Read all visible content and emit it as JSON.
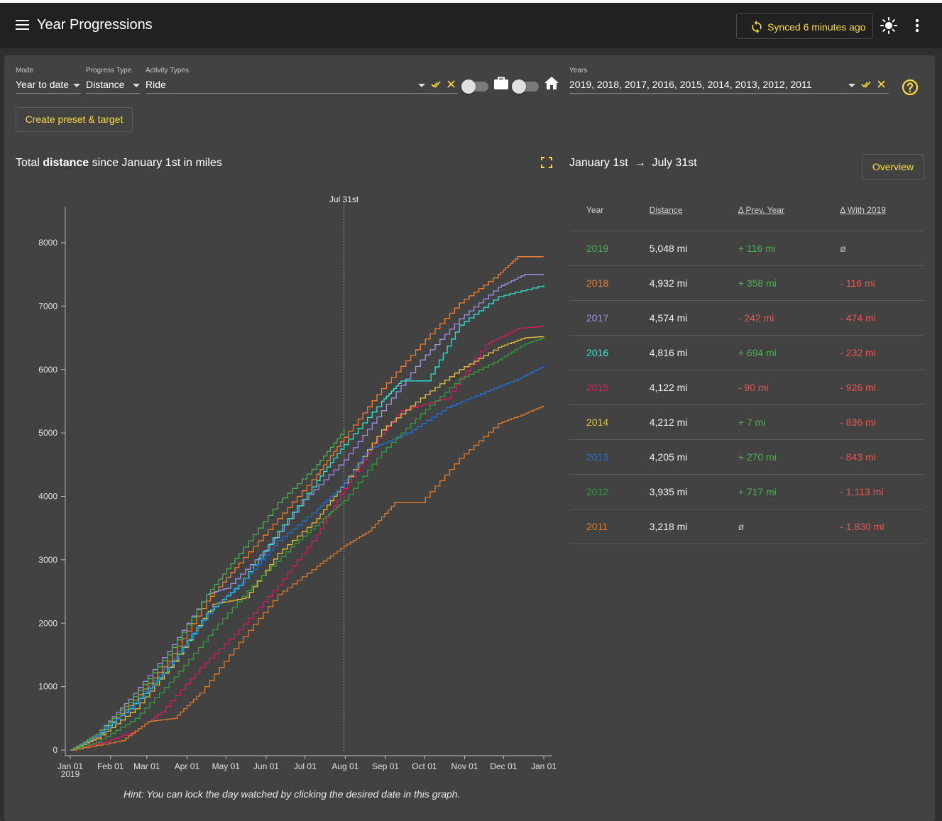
{
  "app": {
    "title": "Year Progressions",
    "sync_label": "Synced 6 minutes ago"
  },
  "filters": {
    "mode": {
      "label": "Mode",
      "value": "Year to date"
    },
    "progress_type": {
      "label": "Progress Type",
      "value": "Distance"
    },
    "activity_types": {
      "label": "Activity Types",
      "value": "Ride"
    },
    "years": {
      "label": "Years",
      "value": "2019, 2018, 2017, 2016, 2015, 2014, 2013, 2012, 2011"
    },
    "commute_toggle": false,
    "indoor_toggle": false
  },
  "buttons": {
    "create_preset": "Create preset & target",
    "overview": "Overview"
  },
  "chart": {
    "title_prefix": "Total",
    "title_bold": "distance",
    "title_suffix": "since January 1st in miles",
    "hint": "Hint: You can lock the day watched by clicking the desired date in this graph."
  },
  "table": {
    "range_from": "January 1st",
    "range_to": "July 31st",
    "headers": {
      "year": "Year",
      "distance": "Distance",
      "prev": "Δ Prev. Year",
      "with": "Δ With 2019"
    },
    "rows": [
      {
        "year": "2019",
        "color": "#4caf50",
        "distance": "5,048 mi",
        "prev": "+ 116 mi",
        "prev_sign": "pos",
        "with": "ø",
        "with_sign": "nil"
      },
      {
        "year": "2018",
        "color": "#f57c2b",
        "distance": "4,932 mi",
        "prev": "+ 358 mi",
        "prev_sign": "pos",
        "with": "- 116 mi",
        "with_sign": "neg"
      },
      {
        "year": "2017",
        "color": "#9f8fe8",
        "distance": "4,574 mi",
        "prev": "- 242 mi",
        "prev_sign": "neg",
        "with": "- 474 mi",
        "with_sign": "neg"
      },
      {
        "year": "2016",
        "color": "#2ee6d6",
        "distance": "4,816 mi",
        "prev": "+ 694 mi",
        "prev_sign": "pos",
        "with": "- 232 mi",
        "with_sign": "neg"
      },
      {
        "year": "2015",
        "color": "#d81b60",
        "distance": "4,122 mi",
        "prev": "- 90 mi",
        "prev_sign": "neg",
        "with": "- 926 mi",
        "with_sign": "neg"
      },
      {
        "year": "2014",
        "color": "#e5c13a",
        "distance": "4,212 mi",
        "prev": "+ 7 mi",
        "prev_sign": "pos",
        "with": "- 836 mi",
        "with_sign": "neg"
      },
      {
        "year": "2013",
        "color": "#1e6fd9",
        "distance": "4,205 mi",
        "prev": "+ 270 mi",
        "prev_sign": "pos",
        "with": "- 843 mi",
        "with_sign": "neg"
      },
      {
        "year": "2012",
        "color": "#2e9d3a",
        "distance": "3,935 mi",
        "prev": "+ 717 mi",
        "prev_sign": "pos",
        "with": "- 1,113 mi",
        "with_sign": "neg"
      },
      {
        "year": "2011",
        "color": "#e07a26",
        "distance": "3,218 mi",
        "prev": "ø",
        "prev_sign": "nil",
        "with": "- 1,830 mi",
        "with_sign": "neg"
      }
    ]
  },
  "chart_data": {
    "type": "line",
    "title": "Total distance since January 1st in miles",
    "xlabel": "",
    "ylabel": "",
    "x_ticks": [
      "Jan 01",
      "Feb 01",
      "Mar 01",
      "Apr 01",
      "May 01",
      "Jun 01",
      "Jul 01",
      "Aug 01",
      "Sep 01",
      "Oct 01",
      "Nov 01",
      "Dec 01",
      "Jan 01"
    ],
    "x_tick_sub": "2019",
    "x_range_days": [
      0,
      365
    ],
    "ylim": [
      0,
      8000
    ],
    "y_ticks": [
      0,
      1000,
      2000,
      3000,
      4000,
      5000,
      6000,
      7000,
      8000
    ],
    "marker": {
      "label": "Jul 31st",
      "day": 211
    },
    "grid": false,
    "x_unit": "day of year",
    "series": [
      {
        "name": "2018",
        "color": "#f57c2b",
        "points": [
          [
            0,
            0
          ],
          [
            20,
            200
          ],
          [
            45,
            700
          ],
          [
            75,
            1400
          ],
          [
            105,
            2350
          ],
          [
            130,
            2950
          ],
          [
            160,
            3650
          ],
          [
            190,
            4350
          ],
          [
            211,
            4932
          ],
          [
            240,
            5700
          ],
          [
            270,
            6400
          ],
          [
            300,
            7050
          ],
          [
            330,
            7500
          ],
          [
            345,
            7780
          ],
          [
            365,
            7780
          ]
        ]
      },
      {
        "name": "2017",
        "color": "#9f8fe8",
        "points": [
          [
            0,
            0
          ],
          [
            20,
            250
          ],
          [
            45,
            800
          ],
          [
            75,
            1550
          ],
          [
            105,
            2450
          ],
          [
            120,
            2550
          ],
          [
            150,
            3150
          ],
          [
            180,
            3950
          ],
          [
            211,
            4574
          ],
          [
            240,
            5350
          ],
          [
            270,
            6150
          ],
          [
            300,
            6800
          ],
          [
            330,
            7300
          ],
          [
            350,
            7500
          ],
          [
            365,
            7500
          ]
        ]
      },
      {
        "name": "2016",
        "color": "#2ee6d6",
        "points": [
          [
            0,
            0
          ],
          [
            20,
            220
          ],
          [
            45,
            650
          ],
          [
            75,
            1300
          ],
          [
            105,
            2150
          ],
          [
            130,
            2600
          ],
          [
            160,
            3450
          ],
          [
            190,
            4250
          ],
          [
            211,
            4816
          ],
          [
            240,
            5500
          ],
          [
            255,
            5820
          ],
          [
            275,
            5820
          ],
          [
            300,
            6700
          ],
          [
            330,
            7150
          ],
          [
            365,
            7330
          ]
        ]
      },
      {
        "name": "2015",
        "color": "#d81b60",
        "points": [
          [
            0,
            0
          ],
          [
            25,
            120
          ],
          [
            50,
            300
          ],
          [
            70,
            600
          ],
          [
            100,
            1300
          ],
          [
            130,
            1900
          ],
          [
            160,
            2600
          ],
          [
            190,
            3400
          ],
          [
            211,
            4122
          ],
          [
            235,
            4850
          ],
          [
            255,
            5350
          ],
          [
            290,
            5550
          ],
          [
            320,
            6400
          ],
          [
            345,
            6650
          ],
          [
            365,
            6680
          ]
        ]
      },
      {
        "name": "2014",
        "color": "#e5c13a",
        "points": [
          [
            0,
            0
          ],
          [
            20,
            180
          ],
          [
            50,
            650
          ],
          [
            80,
            1400
          ],
          [
            110,
            2300
          ],
          [
            135,
            2400
          ],
          [
            160,
            3100
          ],
          [
            190,
            3650
          ],
          [
            211,
            4212
          ],
          [
            240,
            5050
          ],
          [
            270,
            5550
          ],
          [
            300,
            6000
          ],
          [
            330,
            6350
          ],
          [
            350,
            6500
          ],
          [
            365,
            6520
          ]
        ]
      },
      {
        "name": "2013",
        "color": "#1e6fd9",
        "points": [
          [
            0,
            0
          ],
          [
            20,
            220
          ],
          [
            50,
            750
          ],
          [
            80,
            1450
          ],
          [
            110,
            2250
          ],
          [
            135,
            2700
          ],
          [
            160,
            3300
          ],
          [
            190,
            3800
          ],
          [
            211,
            4205
          ],
          [
            230,
            4750
          ],
          [
            260,
            5000
          ],
          [
            290,
            5400
          ],
          [
            320,
            5650
          ],
          [
            345,
            5850
          ],
          [
            365,
            6060
          ]
        ]
      },
      {
        "name": "2012",
        "color": "#2e9d3a",
        "points": [
          [
            0,
            0
          ],
          [
            20,
            120
          ],
          [
            50,
            500
          ],
          [
            80,
            1150
          ],
          [
            110,
            1900
          ],
          [
            140,
            2600
          ],
          [
            170,
            3200
          ],
          [
            195,
            3650
          ],
          [
            211,
            3935
          ],
          [
            240,
            4700
          ],
          [
            270,
            5300
          ],
          [
            300,
            5850
          ],
          [
            330,
            6150
          ],
          [
            350,
            6400
          ],
          [
            365,
            6500
          ]
        ]
      },
      {
        "name": "2011",
        "color": "#e07a26",
        "points": [
          [
            0,
            0
          ],
          [
            40,
            150
          ],
          [
            60,
            450
          ],
          [
            80,
            500
          ],
          [
            100,
            900
          ],
          [
            130,
            1700
          ],
          [
            160,
            2450
          ],
          [
            190,
            2900
          ],
          [
            211,
            3218
          ],
          [
            230,
            3450
          ],
          [
            250,
            3900
          ],
          [
            270,
            3900
          ],
          [
            300,
            4600
          ],
          [
            330,
            5150
          ],
          [
            350,
            5300
          ],
          [
            365,
            5430
          ]
        ]
      },
      {
        "name": "2019",
        "color": "#4caf50",
        "points": [
          [
            0,
            0
          ],
          [
            20,
            250
          ],
          [
            45,
            750
          ],
          [
            75,
            1500
          ],
          [
            105,
            2450
          ],
          [
            130,
            3100
          ],
          [
            160,
            3900
          ],
          [
            190,
            4500
          ],
          [
            211,
            5048
          ]
        ]
      }
    ]
  }
}
